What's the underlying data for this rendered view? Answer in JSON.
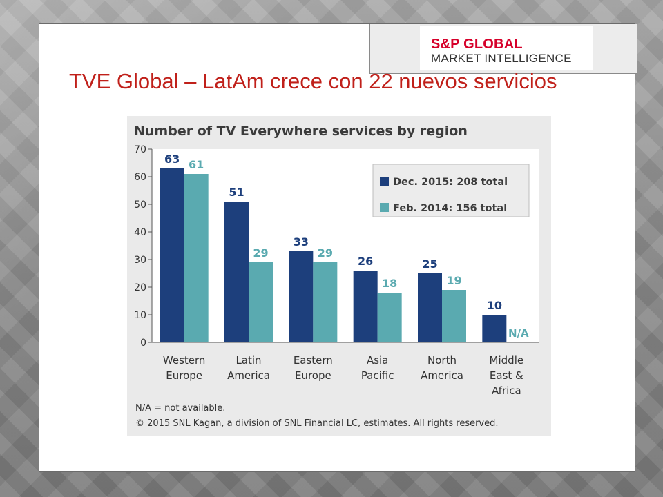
{
  "logo": {
    "line1": "S&P GLOBAL",
    "line2": "MARKET INTELLIGENCE"
  },
  "slide": {
    "title": "TVE Global – LatAm crece con 22 nuevos servicios"
  },
  "colors": {
    "title": "#c0201a",
    "series_dec2015": "#1d3f7c",
    "series_feb2014": "#5aaab0",
    "panel": "#eaeaea",
    "plot": "#ffffff"
  },
  "chart_data": {
    "type": "bar",
    "title": "Number of TV Everywhere services by region",
    "categories": [
      [
        "Western",
        "Europe"
      ],
      [
        "Latin",
        "America"
      ],
      [
        "Eastern",
        "Europe"
      ],
      [
        "Asia",
        "Pacific"
      ],
      [
        "North",
        "America"
      ],
      [
        "Middle",
        "East &",
        "Africa"
      ]
    ],
    "series": [
      {
        "name": "Dec. 2015: 208 total",
        "values": [
          63,
          51,
          33,
          26,
          25,
          10
        ],
        "labels": [
          "63",
          "51",
          "33",
          "26",
          "25",
          "10"
        ]
      },
      {
        "name": "Feb. 2014: 156 total",
        "values": [
          61,
          29,
          29,
          18,
          19,
          null
        ],
        "labels": [
          "61",
          "29",
          "29",
          "18",
          "19",
          "N/A"
        ]
      }
    ],
    "ylim": [
      0,
      70
    ],
    "yticks": [
      0,
      10,
      20,
      30,
      40,
      50,
      60,
      70
    ],
    "legend_position": "top-right",
    "grid": false,
    "notes": [
      "N/A = not available.",
      "© 2015 SNL Kagan, a division of SNL Financial LC, estimates. All rights reserved."
    ]
  }
}
